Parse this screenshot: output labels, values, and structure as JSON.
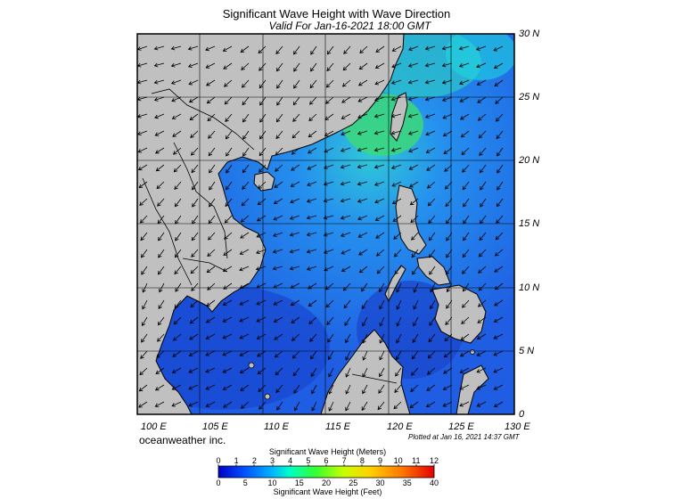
{
  "header": {
    "title": "Significant Wave Height with Wave Direction",
    "valid": "Valid For Jan-16-2021 18:00 GMT"
  },
  "axes": {
    "lat_labels": [
      "30 N",
      "25 N",
      "20 N",
      "15 N",
      "10 N",
      "5 N",
      "0"
    ],
    "lon_labels": [
      "100 E",
      "105 E",
      "110 E",
      "115 E",
      "120 E",
      "125 E",
      "130 E"
    ]
  },
  "footer": {
    "brand": "oceanweather inc.",
    "plotted": "Plotted at Jan 16, 2021 14:37 GMT"
  },
  "colorbar": {
    "meters_title": "Significant Wave Height (Meters)",
    "feet_title": "Significant Wave Height (Feet)",
    "meters_ticks": [
      "0",
      "1",
      "2",
      "3",
      "4",
      "5",
      "6",
      "7",
      "8",
      "9",
      "10",
      "11",
      "12"
    ],
    "feet_ticks": [
      "0",
      "5",
      "10",
      "15",
      "20",
      "25",
      "30",
      "35",
      "40"
    ]
  },
  "colors": {
    "land": "#c0c0c0",
    "ocean_low": "#1f56e0",
    "ocean_mid": "#2a86ee",
    "ocean_high": "#39e0a0"
  }
}
